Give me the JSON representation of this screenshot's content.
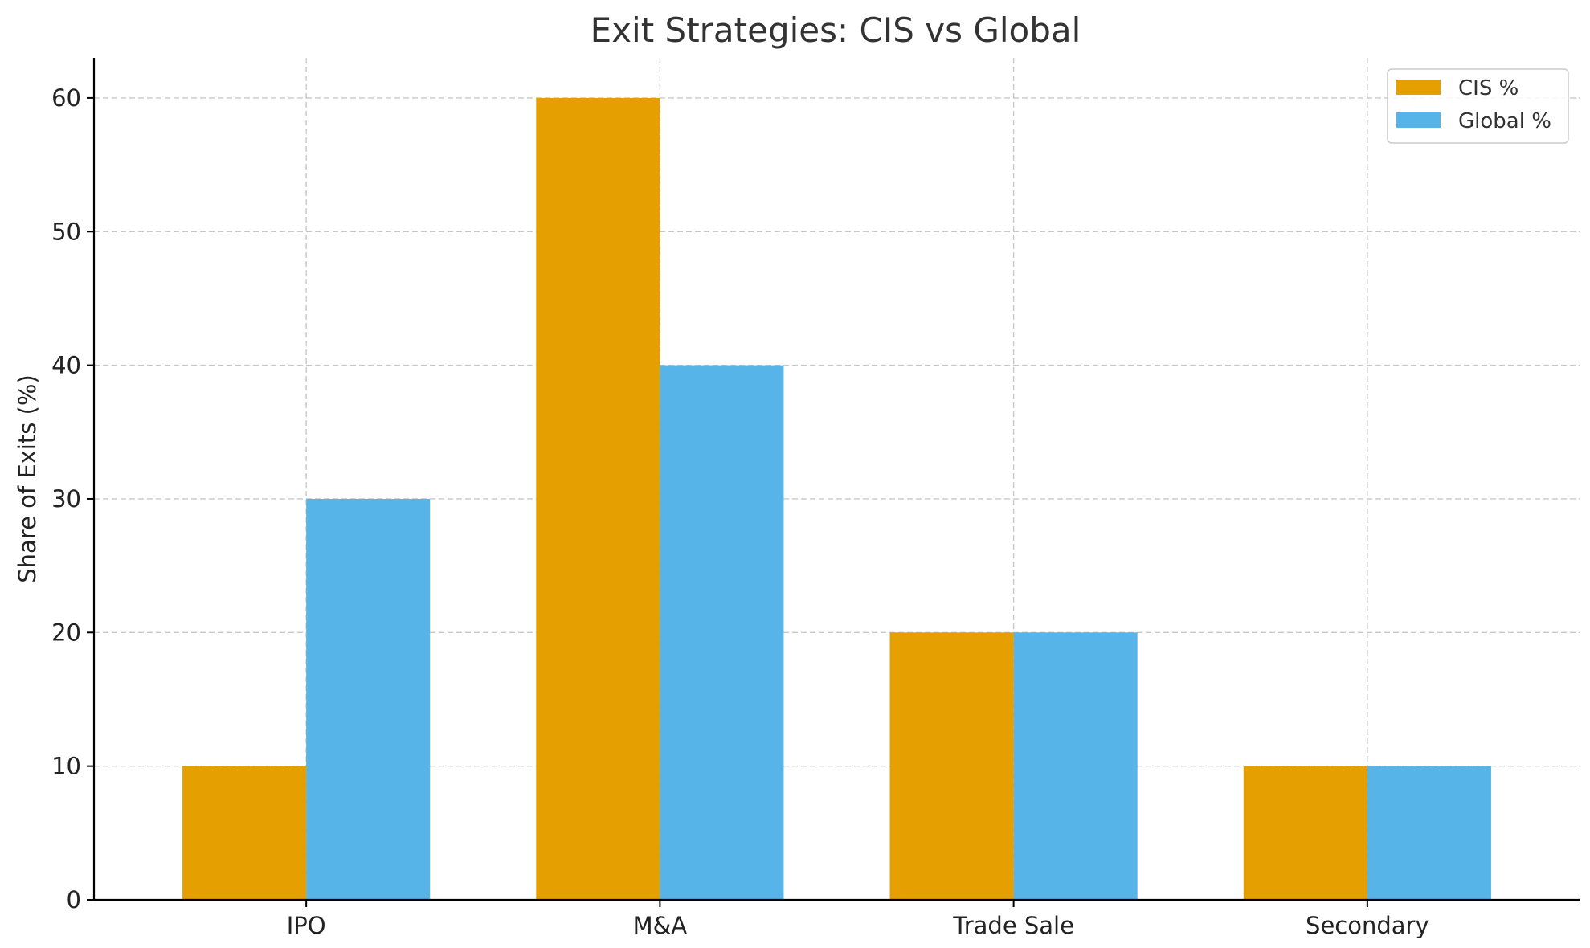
{
  "chart_data": {
    "type": "bar",
    "title": "Exit Strategies: CIS vs Global",
    "xlabel": "",
    "ylabel": "Share of Exits (%)",
    "categories": [
      "IPO",
      "M&A",
      "Trade Sale",
      "Secondary"
    ],
    "series": [
      {
        "name": "CIS %",
        "values": [
          10,
          60,
          20,
          10
        ],
        "color": "#E69F00"
      },
      {
        "name": "Global %",
        "values": [
          30,
          40,
          20,
          10
        ],
        "color": "#56B4E9"
      }
    ],
    "ylim": [
      0,
      63
    ],
    "yticks": [
      0,
      10,
      20,
      30,
      40,
      50,
      60
    ],
    "grid": true,
    "legend_position": "top-right"
  }
}
